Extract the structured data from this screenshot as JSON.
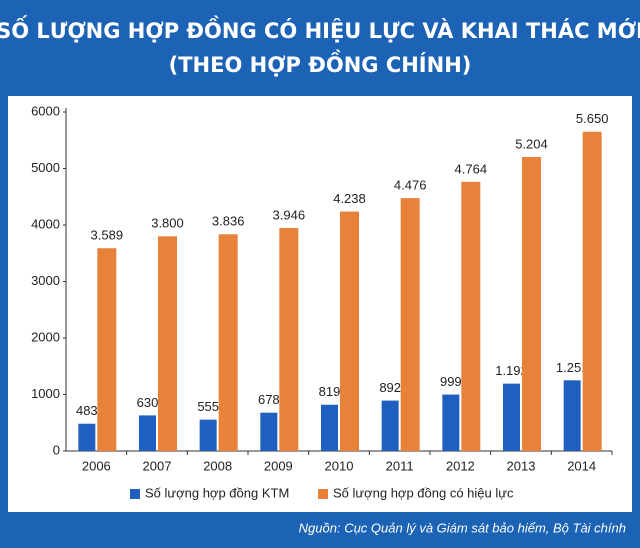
{
  "chart_data": {
    "type": "bar",
    "title": "SỐ LƯỢNG HỢP ĐỒNG CÓ HIỆU LỰC VÀ KHAI THÁC MỚI",
    "subtitle": "(THEO HỢP ĐỒNG CHÍNH)",
    "source": "Nguồn: Cục Quản lý và Giám sát bảo hiểm, Bộ Tài chính",
    "categories": [
      "2006",
      "2007",
      "2008",
      "2009",
      "2010",
      "2011",
      "2012",
      "2013",
      "2014"
    ],
    "series": [
      {
        "name": "Số lượng hợp đồng KTM",
        "color": "#1f5fbf",
        "values": [
          483,
          630,
          555,
          678,
          819,
          892,
          999,
          1192,
          1251
        ],
        "value_labels": [
          "483",
          "630",
          "555",
          "678",
          "819",
          "892",
          "999",
          "1.192",
          "1.251"
        ]
      },
      {
        "name": "Số lượng hợp đồng có hiệu lực",
        "color": "#e8823a",
        "values": [
          3589,
          3800,
          3836,
          3946,
          4238,
          4476,
          4764,
          5204,
          5650
        ],
        "value_labels": [
          "3.589",
          "3.800",
          "3.836",
          "3.946",
          "4.238",
          "4.476",
          "4.764",
          "5.204",
          "5.650"
        ]
      }
    ],
    "ylim": [
      0,
      6000
    ],
    "yticks": [
      0,
      1000,
      2000,
      3000,
      4000,
      5000,
      6000
    ],
    "grid": false,
    "legend": "bottom"
  }
}
